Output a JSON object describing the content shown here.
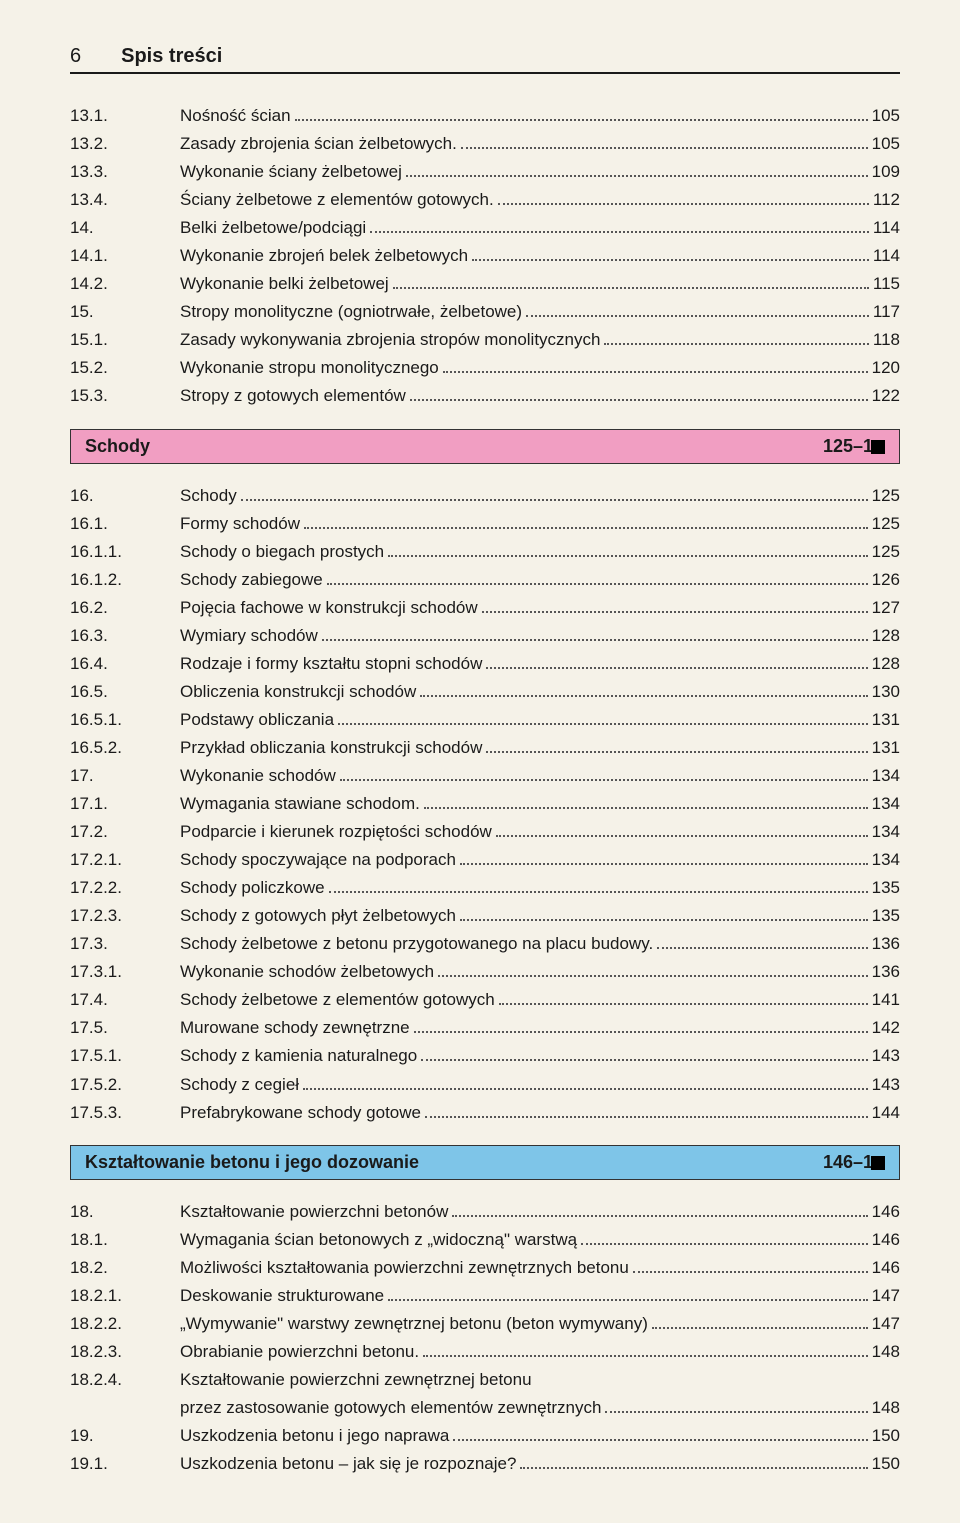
{
  "header": {
    "page_number": "6",
    "title": "Spis treści"
  },
  "block1": [
    {
      "num": "13.1.",
      "text": "Nośność ścian",
      "page": "105"
    },
    {
      "num": "13.2.",
      "text": "Zasady zbrojenia ścian żelbetowych.",
      "page": "105"
    },
    {
      "num": "13.3.",
      "text": "Wykonanie ściany żelbetowej",
      "page": "109"
    },
    {
      "num": "13.4.",
      "text": "Ściany żelbetowe z elementów gotowych.",
      "page": "112"
    },
    {
      "num": "14.",
      "text": "Belki żelbetowe/podciągi",
      "page": "114"
    },
    {
      "num": "14.1.",
      "text": "Wykonanie zbrojeń belek żelbetowych",
      "page": "114"
    },
    {
      "num": "14.2.",
      "text": "Wykonanie belki żelbetowej",
      "page": "115"
    },
    {
      "num": "15.",
      "text": "Stropy monolityczne (ogniotrwałe, żelbetowe)",
      "page": "117"
    },
    {
      "num": "15.1.",
      "text": "Zasady wykonywania zbrojenia stropów monolitycznych",
      "page": "118"
    },
    {
      "num": "15.2.",
      "text": "Wykonanie stropu monolitycznego",
      "page": "120"
    },
    {
      "num": "15.3.",
      "text": "Stropy z gotowych elementów",
      "page": "122"
    }
  ],
  "section1": {
    "title": "Schody",
    "range_prefix": "125–1",
    "bar_color": "pink"
  },
  "block2": [
    {
      "num": "16.",
      "text": "Schody",
      "page": "125"
    },
    {
      "num": "16.1.",
      "text": "Formy schodów",
      "page": "125"
    },
    {
      "num": "16.1.1.",
      "text": "Schody o biegach prostych",
      "page": "125"
    },
    {
      "num": "16.1.2.",
      "text": "Schody zabiegowe",
      "page": "126"
    },
    {
      "num": "16.2.",
      "text": "Pojęcia fachowe w konstrukcji schodów",
      "page": "127"
    },
    {
      "num": "16.3.",
      "text": "Wymiary schodów",
      "page": "128"
    },
    {
      "num": "16.4.",
      "text": "Rodzaje i formy kształtu stopni schodów",
      "page": "128"
    },
    {
      "num": "16.5.",
      "text": "Obliczenia konstrukcji schodów",
      "page": "130"
    },
    {
      "num": "16.5.1.",
      "text": "Podstawy obliczania",
      "page": "131"
    },
    {
      "num": "16.5.2.",
      "text": "Przykład obliczania konstrukcji schodów",
      "page": "131"
    },
    {
      "num": "17.",
      "text": "Wykonanie schodów",
      "page": "134"
    },
    {
      "num": "17.1.",
      "text": "Wymagania stawiane schodom.",
      "page": "134"
    },
    {
      "num": "17.2.",
      "text": "Podparcie i kierunek rozpiętości schodów",
      "page": "134"
    },
    {
      "num": "17.2.1.",
      "text": "Schody spoczywające na podporach",
      "page": "134"
    },
    {
      "num": "17.2.2.",
      "text": "Schody policzkowe",
      "page": "135"
    },
    {
      "num": "17.2.3.",
      "text": "Schody z gotowych płyt żelbetowych",
      "page": "135"
    },
    {
      "num": "17.3.",
      "text": "Schody żelbetowe z betonu przygotowanego na placu budowy.",
      "page": "136"
    },
    {
      "num": "17.3.1.",
      "text": "Wykonanie schodów żelbetowych",
      "page": "136"
    },
    {
      "num": "17.4.",
      "text": "Schody żelbetowe z elementów gotowych",
      "page": "141"
    },
    {
      "num": "17.5.",
      "text": "Murowane schody zewnętrzne",
      "page": "142"
    },
    {
      "num": "17.5.1.",
      "text": "Schody z kamienia naturalnego",
      "page": "143"
    },
    {
      "num": "17.5.2.",
      "text": "Schody z cegieł",
      "page": "143"
    },
    {
      "num": "17.5.3.",
      "text": "Prefabrykowane schody gotowe",
      "page": "144"
    }
  ],
  "section2": {
    "title": "Kształtowanie betonu i jego dozowanie",
    "range_prefix": "146–1",
    "bar_color": "blue"
  },
  "block3": [
    {
      "num": "18.",
      "text": "Kształtowanie powierzchni betonów",
      "page": "146"
    },
    {
      "num": "18.1.",
      "text": "Wymagania ścian betonowych z „widoczną\" warstwą",
      "page": "146"
    },
    {
      "num": "18.2.",
      "text": "Możliwości kształtowania powierzchni zewnętrznych betonu",
      "page": "146"
    },
    {
      "num": "18.2.1.",
      "text": "Deskowanie strukturowane",
      "page": "147"
    },
    {
      "num": "18.2.2.",
      "text": "„Wymywanie\" warstwy zewnętrznej betonu (beton wymywany)",
      "page": "147"
    },
    {
      "num": "18.2.3.",
      "text": "Obrabianie powierzchni betonu.",
      "page": "148"
    },
    {
      "num": "18.2.4.",
      "text": "Kształtowanie powierzchni zewnętrznej betonu",
      "cont": "przez zastosowanie gotowych elementów zewnętrznych",
      "page": "148"
    },
    {
      "num": "19.",
      "text": "Uszkodzenia betonu i jego naprawa",
      "page": "150"
    },
    {
      "num": "19.1.",
      "text": "Uszkodzenia betonu – jak się je rozpoznaje?",
      "page": "150"
    }
  ]
}
